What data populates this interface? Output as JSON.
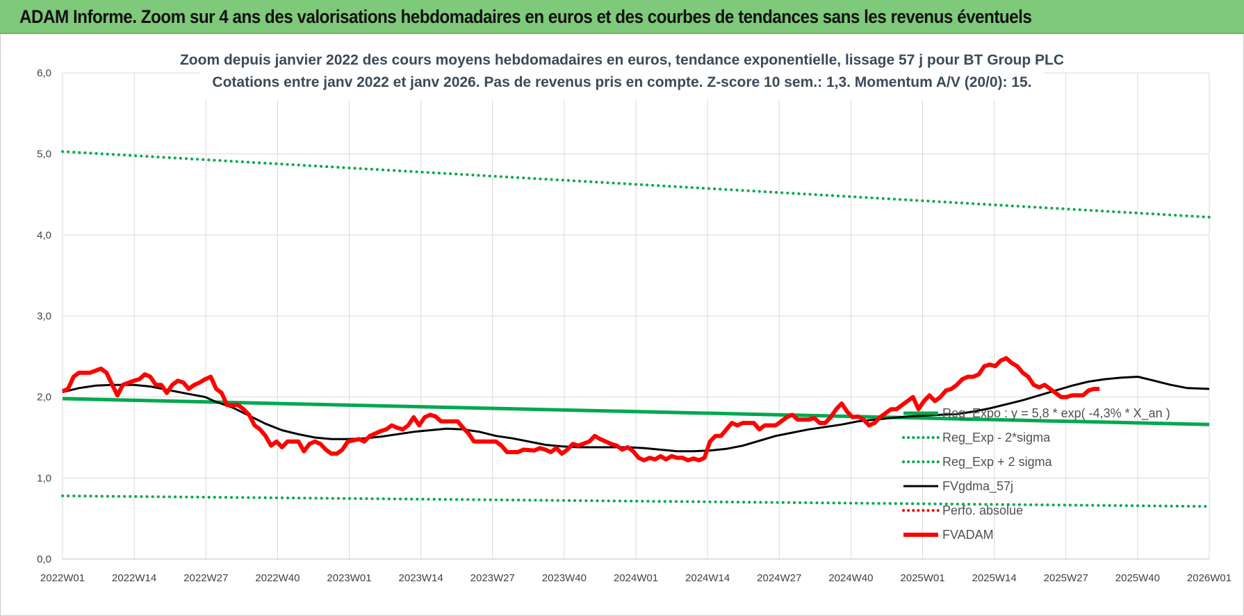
{
  "header": {
    "banner_title": "ADAM Informe. Zoom sur 4 ans des valorisations hebdomadaires en euros et des courbes de tendances sans les revenus éventuels"
  },
  "chart_data": {
    "type": "line",
    "title": "Zoom depuis janvier 2022 des cours moyens hebdomadaires en euros, tendance exponentielle, lissage 57 j pour BT Group PLC",
    "subtitle": "Cotations entre janv 2022 et janv 2026. Pas de revenus pris en compte. Z-score 10 sem.: 1,3. Momentum A/V (20/0): 15.",
    "xlabel": "",
    "ylabel": "",
    "ylim": [
      0,
      6
    ],
    "yticks": [
      "0,0",
      "1,0",
      "2,0",
      "3,0",
      "4,0",
      "5,0",
      "6,0"
    ],
    "xticks": [
      "2022W01",
      "2022W14",
      "2022W27",
      "2022W40",
      "2023W01",
      "2023W14",
      "2023W27",
      "2023W40",
      "2024W01",
      "2024W14",
      "2024W27",
      "2024W40",
      "2025W01",
      "2025W14",
      "2025W27",
      "2025W40",
      "2026W01"
    ],
    "x_range_weeks": [
      0,
      209
    ],
    "grid": true,
    "legend_position": "bottom-right inside plot",
    "series": [
      {
        "name": "Reg_Expo : y = 5,8 * exp( -4,3% * X_an )",
        "style": "solid",
        "color": "#00a84f",
        "width": 5,
        "points": [
          [
            0,
            1.98
          ],
          [
            209,
            1.66
          ]
        ]
      },
      {
        "name": "Reg_Exp - 2*sigma",
        "style": "dotted",
        "color": "#00a84f",
        "width": 4,
        "points": [
          [
            0,
            0.78
          ],
          [
            209,
            0.65
          ]
        ]
      },
      {
        "name": "Reg_Exp + 2 sigma",
        "style": "dotted",
        "color": "#00a84f",
        "width": 4,
        "points": [
          [
            0,
            5.03
          ],
          [
            209,
            4.22
          ]
        ]
      },
      {
        "name": "FVgdma_57j",
        "style": "solid",
        "color": "#000000",
        "width": 3,
        "points": [
          [
            0,
            2.06
          ],
          [
            3,
            2.11
          ],
          [
            6,
            2.14
          ],
          [
            9,
            2.15
          ],
          [
            13,
            2.15
          ],
          [
            16,
            2.13
          ],
          [
            19,
            2.09
          ],
          [
            22,
            2.05
          ],
          [
            26,
            2.0
          ],
          [
            28,
            1.94
          ],
          [
            31,
            1.87
          ],
          [
            34,
            1.77
          ],
          [
            37,
            1.67
          ],
          [
            40,
            1.59
          ],
          [
            43,
            1.54
          ],
          [
            46,
            1.5
          ],
          [
            49,
            1.48
          ],
          [
            52,
            1.48
          ],
          [
            55,
            1.49
          ],
          [
            58,
            1.51
          ],
          [
            61,
            1.54
          ],
          [
            64,
            1.57
          ],
          [
            67,
            1.59
          ],
          [
            70,
            1.61
          ],
          [
            73,
            1.6
          ],
          [
            76,
            1.57
          ],
          [
            79,
            1.52
          ],
          [
            82,
            1.49
          ],
          [
            85,
            1.45
          ],
          [
            88,
            1.41
          ],
          [
            91,
            1.39
          ],
          [
            94,
            1.38
          ],
          [
            97,
            1.38
          ],
          [
            100,
            1.38
          ],
          [
            103,
            1.38
          ],
          [
            106,
            1.37
          ],
          [
            109,
            1.35
          ],
          [
            112,
            1.33
          ],
          [
            115,
            1.33
          ],
          [
            118,
            1.34
          ],
          [
            121,
            1.36
          ],
          [
            124,
            1.4
          ],
          [
            127,
            1.46
          ],
          [
            130,
            1.52
          ],
          [
            133,
            1.56
          ],
          [
            136,
            1.6
          ],
          [
            139,
            1.63
          ],
          [
            142,
            1.66
          ],
          [
            145,
            1.7
          ],
          [
            148,
            1.72
          ],
          [
            151,
            1.74
          ],
          [
            154,
            1.76
          ],
          [
            157,
            1.77
          ],
          [
            160,
            1.78
          ],
          [
            163,
            1.79
          ],
          [
            166,
            1.82
          ],
          [
            169,
            1.86
          ],
          [
            172,
            1.91
          ],
          [
            175,
            1.96
          ],
          [
            178,
            2.02
          ],
          [
            181,
            2.08
          ],
          [
            184,
            2.14
          ],
          [
            187,
            2.19
          ],
          [
            190,
            2.22
          ],
          [
            193,
            2.24
          ],
          [
            196,
            2.25
          ],
          [
            199,
            2.2
          ],
          [
            202,
            2.15
          ],
          [
            205,
            2.11
          ],
          [
            209,
            2.1
          ]
        ]
      },
      {
        "name": "Perfo. absolue",
        "style": "dotted",
        "color": "#ff0000",
        "width": 3,
        "points": []
      },
      {
        "name": "FVADAM",
        "style": "solid",
        "color": "#ff0000",
        "width": 6,
        "points": [
          [
            0,
            2.07
          ],
          [
            1,
            2.1
          ],
          [
            2,
            2.25
          ],
          [
            3,
            2.3
          ],
          [
            5,
            2.3
          ],
          [
            7,
            2.35
          ],
          [
            8,
            2.3
          ],
          [
            10,
            2.02
          ],
          [
            11,
            2.15
          ],
          [
            13,
            2.2
          ],
          [
            14,
            2.22
          ],
          [
            15,
            2.28
          ],
          [
            16,
            2.25
          ],
          [
            17,
            2.15
          ],
          [
            18,
            2.15
          ],
          [
            19,
            2.05
          ],
          [
            20,
            2.15
          ],
          [
            21,
            2.2
          ],
          [
            22,
            2.18
          ],
          [
            23,
            2.1
          ],
          [
            24,
            2.15
          ],
          [
            25,
            2.18
          ],
          [
            26,
            2.22
          ],
          [
            27,
            2.25
          ],
          [
            28,
            2.1
          ],
          [
            29,
            2.05
          ],
          [
            30,
            1.9
          ],
          [
            32,
            1.9
          ],
          [
            33,
            1.85
          ],
          [
            34,
            1.78
          ],
          [
            35,
            1.65
          ],
          [
            36,
            1.6
          ],
          [
            37,
            1.52
          ],
          [
            38,
            1.4
          ],
          [
            39,
            1.45
          ],
          [
            40,
            1.38
          ],
          [
            41,
            1.45
          ],
          [
            43,
            1.45
          ],
          [
            44,
            1.33
          ],
          [
            45,
            1.42
          ],
          [
            46,
            1.45
          ],
          [
            47,
            1.42
          ],
          [
            48,
            1.35
          ],
          [
            49,
            1.3
          ],
          [
            50,
            1.3
          ],
          [
            51,
            1.35
          ],
          [
            52,
            1.45
          ],
          [
            54,
            1.48
          ],
          [
            55,
            1.45
          ],
          [
            56,
            1.52
          ],
          [
            57,
            1.55
          ],
          [
            58,
            1.58
          ],
          [
            59,
            1.6
          ],
          [
            60,
            1.65
          ],
          [
            61,
            1.62
          ],
          [
            62,
            1.6
          ],
          [
            63,
            1.65
          ],
          [
            64,
            1.75
          ],
          [
            65,
            1.65
          ],
          [
            66,
            1.75
          ],
          [
            67,
            1.78
          ],
          [
            68,
            1.76
          ],
          [
            69,
            1.7
          ],
          [
            72,
            1.7
          ],
          [
            73,
            1.62
          ],
          [
            74,
            1.55
          ],
          [
            75,
            1.45
          ],
          [
            76,
            1.45
          ],
          [
            79,
            1.45
          ],
          [
            80,
            1.4
          ],
          [
            81,
            1.32
          ],
          [
            83,
            1.32
          ],
          [
            84,
            1.35
          ],
          [
            86,
            1.34
          ],
          [
            87,
            1.37
          ],
          [
            88,
            1.35
          ],
          [
            89,
            1.32
          ],
          [
            90,
            1.37
          ],
          [
            91,
            1.3
          ],
          [
            92,
            1.35
          ],
          [
            93,
            1.42
          ],
          [
            94,
            1.4
          ],
          [
            96,
            1.45
          ],
          [
            97,
            1.52
          ],
          [
            98,
            1.48
          ],
          [
            99,
            1.45
          ],
          [
            100,
            1.42
          ],
          [
            101,
            1.4
          ],
          [
            102,
            1.35
          ],
          [
            103,
            1.38
          ],
          [
            104,
            1.33
          ],
          [
            105,
            1.25
          ],
          [
            106,
            1.22
          ],
          [
            107,
            1.25
          ],
          [
            108,
            1.23
          ],
          [
            109,
            1.27
          ],
          [
            110,
            1.23
          ],
          [
            111,
            1.27
          ],
          [
            112,
            1.25
          ],
          [
            113,
            1.25
          ],
          [
            114,
            1.22
          ],
          [
            115,
            1.24
          ],
          [
            116,
            1.22
          ],
          [
            117,
            1.25
          ],
          [
            118,
            1.45
          ],
          [
            119,
            1.52
          ],
          [
            120,
            1.52
          ],
          [
            121,
            1.6
          ],
          [
            122,
            1.68
          ],
          [
            123,
            1.65
          ],
          [
            124,
            1.68
          ],
          [
            126,
            1.68
          ],
          [
            127,
            1.6
          ],
          [
            128,
            1.65
          ],
          [
            130,
            1.65
          ],
          [
            131,
            1.7
          ],
          [
            132,
            1.75
          ],
          [
            133,
            1.78
          ],
          [
            134,
            1.72
          ],
          [
            136,
            1.72
          ],
          [
            137,
            1.74
          ],
          [
            138,
            1.68
          ],
          [
            139,
            1.68
          ],
          [
            140,
            1.75
          ],
          [
            141,
            1.85
          ],
          [
            142,
            1.92
          ],
          [
            143,
            1.82
          ],
          [
            144,
            1.75
          ],
          [
            145,
            1.76
          ],
          [
            146,
            1.72
          ],
          [
            147,
            1.65
          ],
          [
            148,
            1.68
          ],
          [
            149,
            1.75
          ],
          [
            150,
            1.8
          ],
          [
            151,
            1.85
          ],
          [
            152,
            1.85
          ],
          [
            153,
            1.9
          ],
          [
            154,
            1.95
          ],
          [
            155,
            2.0
          ],
          [
            156,
            1.85
          ],
          [
            157,
            1.95
          ],
          [
            158,
            2.02
          ],
          [
            159,
            1.95
          ],
          [
            160,
            2.0
          ],
          [
            161,
            2.08
          ],
          [
            162,
            2.1
          ],
          [
            163,
            2.15
          ],
          [
            164,
            2.22
          ],
          [
            165,
            2.25
          ],
          [
            166,
            2.25
          ],
          [
            167,
            2.28
          ],
          [
            168,
            2.38
          ],
          [
            169,
            2.4
          ],
          [
            170,
            2.38
          ],
          [
            171,
            2.45
          ],
          [
            172,
            2.48
          ],
          [
            173,
            2.42
          ],
          [
            174,
            2.38
          ],
          [
            175,
            2.3
          ],
          [
            176,
            2.25
          ],
          [
            177,
            2.15
          ],
          [
            178,
            2.12
          ],
          [
            179,
            2.15
          ],
          [
            180,
            2.1
          ],
          [
            181,
            2.05
          ],
          [
            182,
            2.0
          ],
          [
            183,
            2.0
          ],
          [
            184,
            2.02
          ],
          [
            186,
            2.02
          ],
          [
            187,
            2.08
          ],
          [
            188,
            2.1
          ],
          [
            189,
            2.1
          ]
        ]
      }
    ]
  }
}
